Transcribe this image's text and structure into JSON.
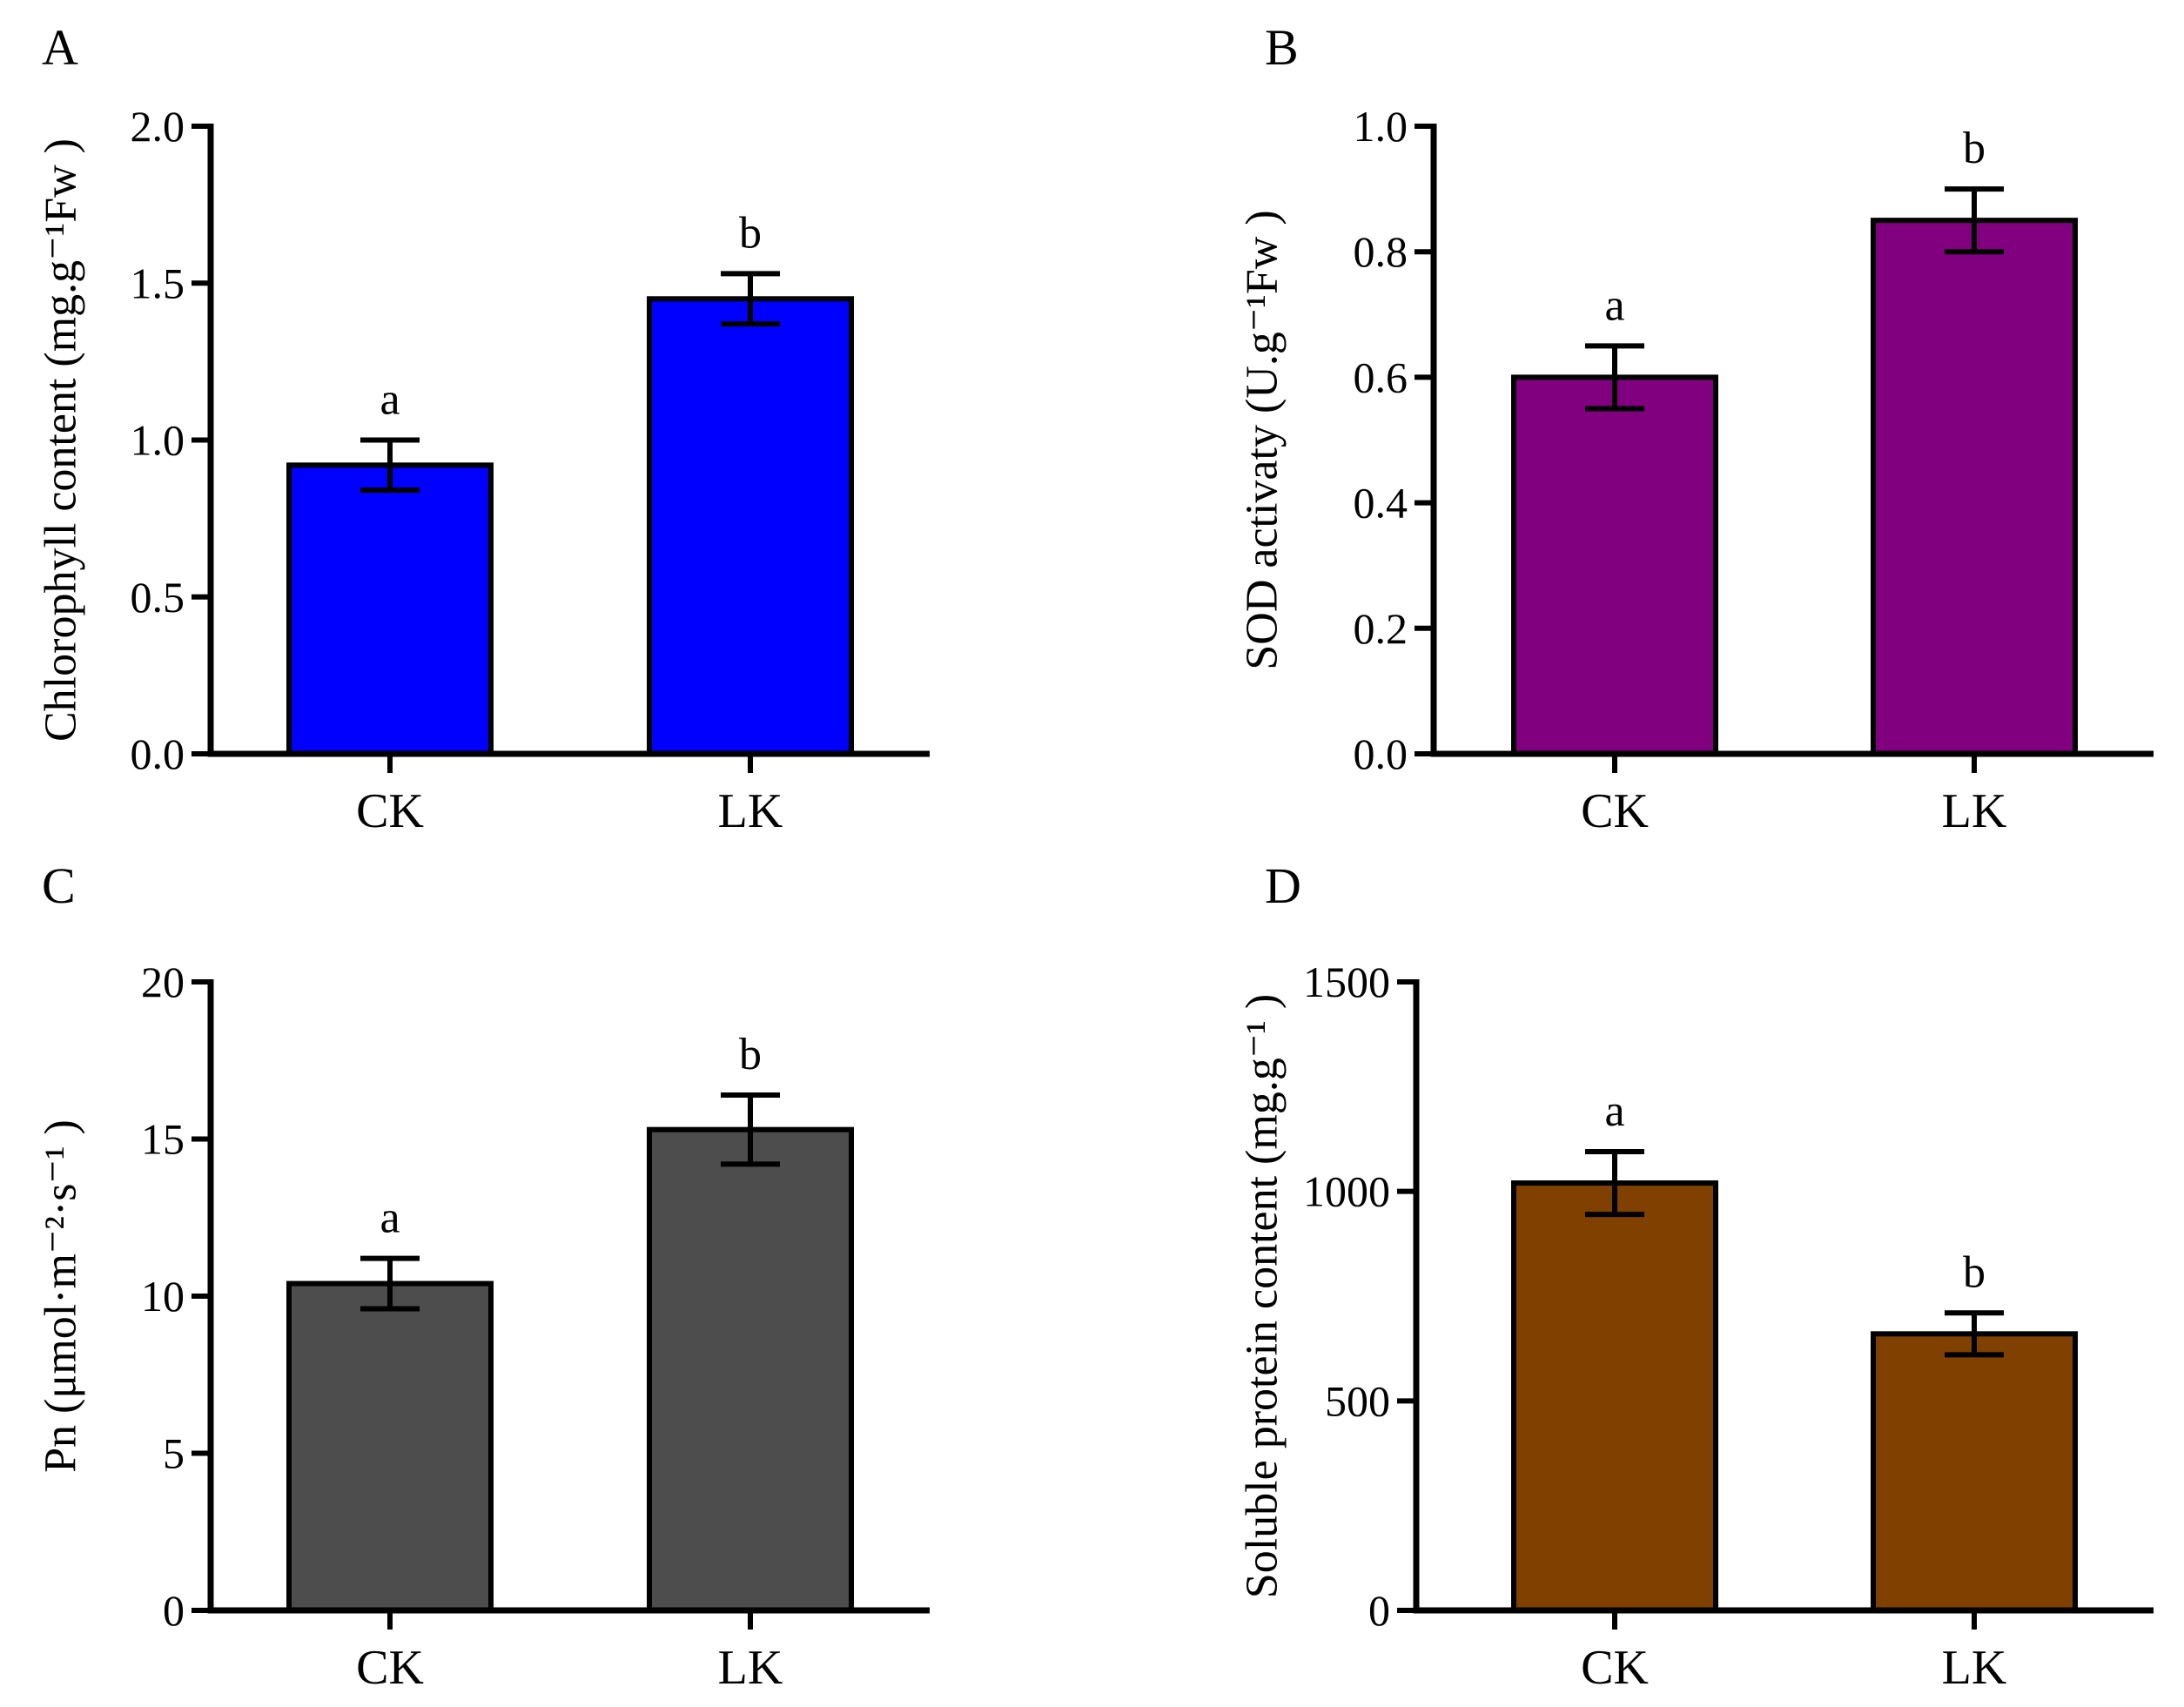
{
  "chart_data": [
    {
      "panel": "A",
      "type": "bar",
      "categories": [
        "CK",
        "LK"
      ],
      "values": [
        0.92,
        1.45
      ],
      "errors": [
        0.08,
        0.08
      ],
      "significance": [
        "a",
        "b"
      ],
      "ylim": [
        0,
        2.0
      ],
      "yticks": [
        0,
        0.5,
        1.0,
        1.5,
        2.0
      ],
      "ytick_labels": [
        "0.0",
        "0.5",
        "1.0",
        "1.5",
        "2.0"
      ],
      "ylabel": "Chlorophyll content (mg.g⁻¹Fw )",
      "xlabel": "",
      "bar_color": "#0000ff"
    },
    {
      "panel": "B",
      "type": "bar",
      "categories": [
        "CK",
        "LK"
      ],
      "values": [
        0.6,
        0.85
      ],
      "errors": [
        0.05,
        0.05
      ],
      "significance": [
        "a",
        "b"
      ],
      "ylim": [
        0,
        1.0
      ],
      "yticks": [
        0,
        0.2,
        0.4,
        0.6,
        0.8,
        1.0
      ],
      "ytick_labels": [
        "0.0",
        "0.2",
        "0.4",
        "0.6",
        "0.8",
        "1.0"
      ],
      "ylabel": "SOD activaty (U.g⁻¹Fw )",
      "xlabel": "",
      "bar_color": "#800080"
    },
    {
      "panel": "C",
      "type": "bar",
      "categories": [
        "CK",
        "LK"
      ],
      "values": [
        10.4,
        15.3
      ],
      "errors": [
        0.8,
        1.1
      ],
      "significance": [
        "a",
        "b"
      ],
      "ylim": [
        0,
        20
      ],
      "yticks": [
        0,
        5,
        10,
        15,
        20
      ],
      "ytick_labels": [
        "0",
        "5",
        "10",
        "15",
        "20"
      ],
      "ylabel": "Pn (μmol·m⁻²·s⁻¹ )",
      "xlabel": "",
      "bar_color": "#4d4d4d"
    },
    {
      "panel": "D",
      "type": "bar",
      "categories": [
        "CK",
        "LK"
      ],
      "values": [
        1020,
        660
      ],
      "errors": [
        75,
        50
      ],
      "significance": [
        "a",
        "b"
      ],
      "ylim": [
        0,
        1500
      ],
      "yticks": [
        0,
        500,
        1000,
        1500
      ],
      "ytick_labels": [
        "0",
        "500",
        "1000",
        "1500"
      ],
      "ylabel": "Soluble protein content (mg.g⁻¹ )",
      "xlabel": "",
      "bar_color": "#804000"
    }
  ]
}
